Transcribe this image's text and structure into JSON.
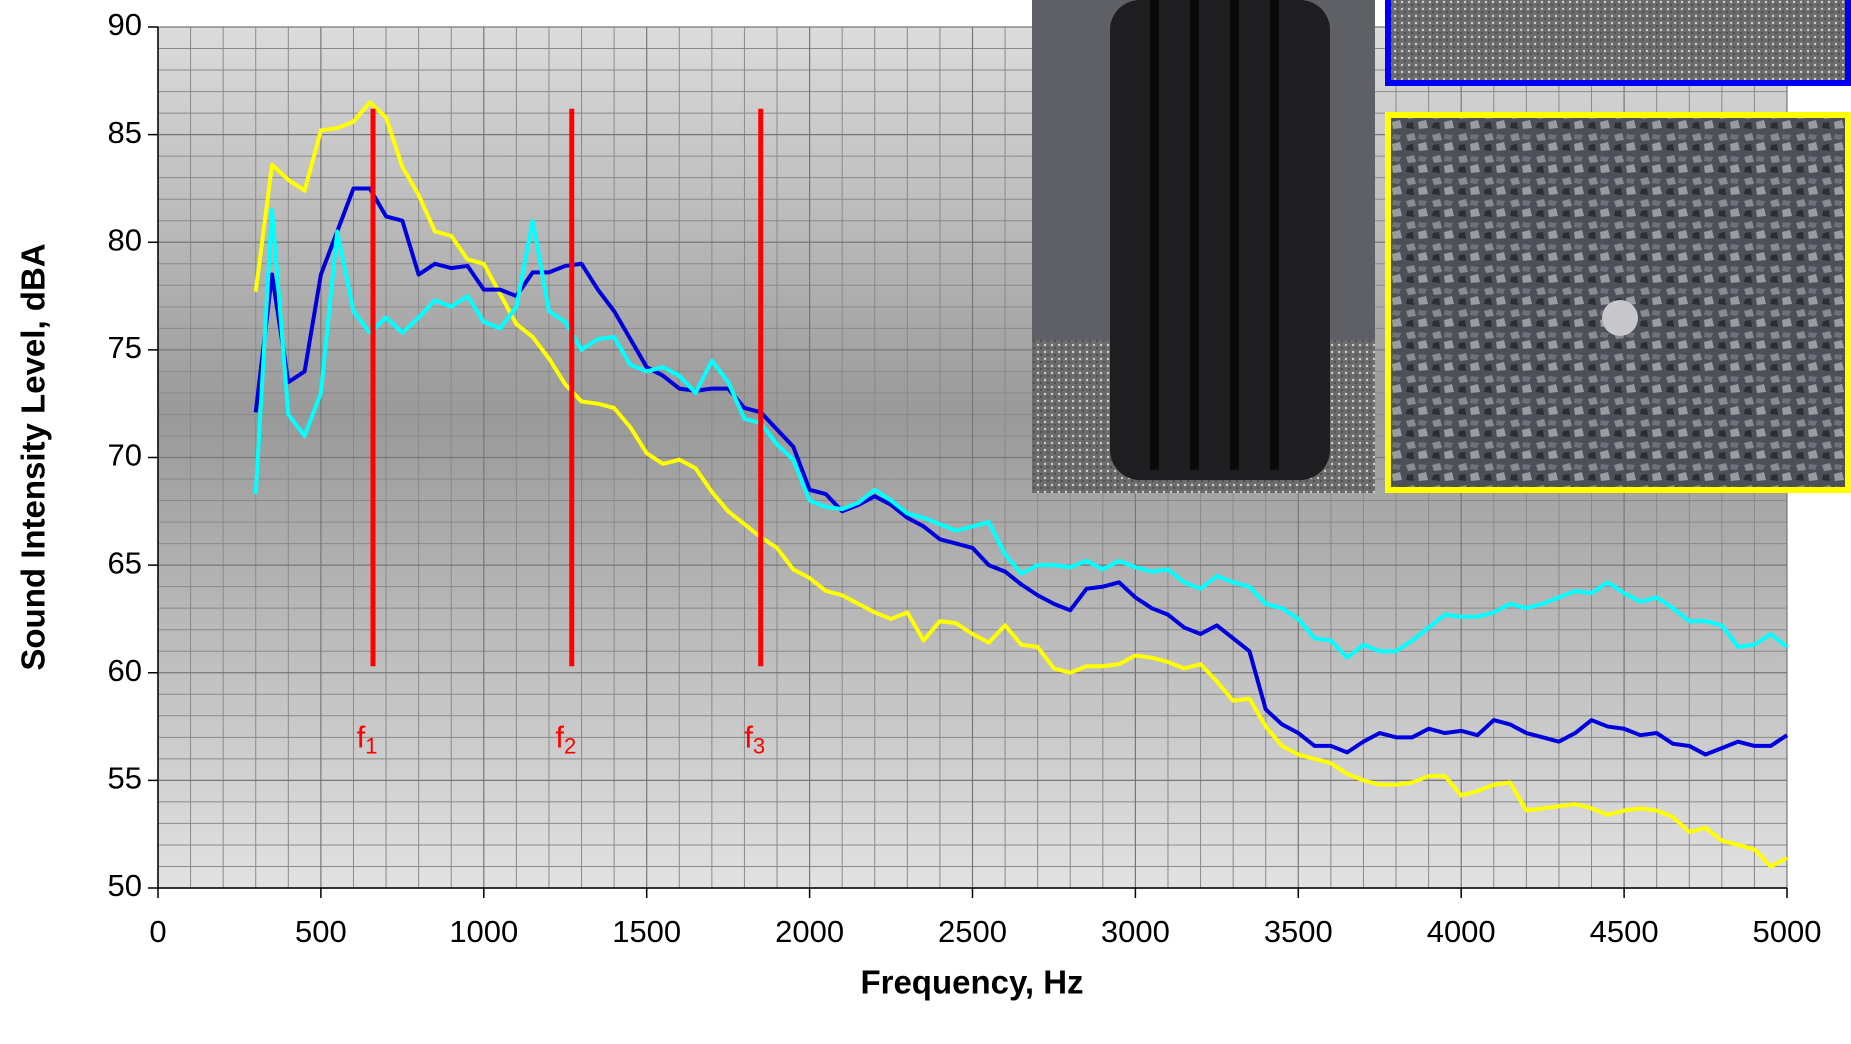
{
  "chart_data": {
    "type": "line",
    "xlabel": "Frequency, Hz",
    "ylabel": "Sound Intensity Level, dBA",
    "xlim": [
      0,
      5000
    ],
    "ylim": [
      50,
      90
    ],
    "xticks": [
      0,
      500,
      1000,
      1500,
      2000,
      2500,
      3000,
      3500,
      4000,
      4500,
      5000
    ],
    "yticks": [
      50,
      55,
      60,
      65,
      70,
      75,
      80,
      85,
      90
    ],
    "xminorticks": [
      100,
      200,
      300,
      400,
      600,
      700,
      800,
      900,
      1100,
      1200,
      1300,
      1400,
      1600,
      1700,
      1800,
      1900,
      2100,
      2200,
      2300,
      2400,
      2600,
      2700,
      2800,
      2900,
      3100,
      3200,
      3300,
      3400,
      3600,
      3700,
      3800,
      3900,
      4100,
      4200,
      4300,
      4400,
      4600,
      4700,
      4800,
      4900
    ],
    "yminorticks": [
      51,
      52,
      53,
      54,
      56,
      57,
      58,
      59,
      61,
      62,
      63,
      64,
      66,
      67,
      68,
      69,
      71,
      72,
      73,
      74,
      76,
      77,
      78,
      79,
      81,
      82,
      83,
      84,
      86,
      87,
      88,
      89
    ],
    "grid": true,
    "x": [
      300,
      350,
      400,
      450,
      500,
      550,
      600,
      650,
      700,
      750,
      800,
      850,
      900,
      950,
      1000,
      1050,
      1100,
      1150,
      1200,
      1250,
      1300,
      1350,
      1400,
      1450,
      1500,
      1550,
      1600,
      1650,
      1700,
      1750,
      1800,
      1850,
      1900,
      1950,
      2000,
      2050,
      2100,
      2150,
      2200,
      2250,
      2300,
      2350,
      2400,
      2450,
      2500,
      2550,
      2600,
      2650,
      2700,
      2750,
      2800,
      2850,
      2900,
      2950,
      3000,
      3050,
      3100,
      3150,
      3200,
      3250,
      3300,
      3350,
      3400,
      3450,
      3500,
      3550,
      3600,
      3650,
      3700,
      3750,
      3800,
      3850,
      3900,
      3950,
      4000,
      4050,
      4100,
      4150,
      4200,
      4250,
      4300,
      4350,
      4400,
      4450,
      4500,
      4550,
      4600,
      4650,
      4700,
      4750,
      4800,
      4850,
      4900,
      4950,
      5000
    ],
    "series": [
      {
        "color": "#ffff00",
        "values": [
          77.7,
          83.6,
          82.9,
          82.4,
          85.2,
          85.3,
          85.6,
          86.5,
          85.8,
          83.5,
          82.2,
          80.5,
          80.3,
          79.2,
          79.0,
          77.6,
          76.2,
          75.6,
          74.6,
          73.4,
          72.6,
          72.5,
          72.3,
          71.4,
          70.2,
          69.7,
          69.9,
          69.5,
          68.4,
          67.5,
          66.9,
          66.3,
          65.8,
          64.8,
          64.4,
          63.8,
          63.6,
          63.2,
          62.8,
          62.5,
          62.8,
          61.5,
          62.4,
          62.3,
          61.8,
          61.4,
          62.2,
          61.3,
          61.2,
          60.2,
          60.0,
          60.3,
          60.3,
          60.4,
          60.8,
          60.7,
          60.5,
          60.2,
          60.4,
          59.6,
          58.7,
          58.8,
          57.5,
          56.6,
          56.2,
          56.0,
          55.8,
          55.3,
          55.0,
          54.8,
          54.8,
          54.9,
          55.2,
          55.2,
          54.3,
          54.5,
          54.8,
          54.9,
          53.6,
          53.7,
          53.8,
          53.9,
          53.7,
          53.4,
          53.6,
          53.7,
          53.6,
          53.3,
          52.6,
          52.8,
          52.2,
          52.0,
          51.8,
          51.0,
          51.4
        ]
      },
      {
        "color": "#0000dd",
        "values": [
          72.1,
          78.5,
          73.5,
          74.0,
          78.5,
          80.5,
          82.5,
          82.5,
          81.2,
          81.0,
          78.5,
          79.0,
          78.8,
          78.9,
          77.8,
          77.8,
          77.5,
          78.6,
          78.6,
          78.9,
          79.0,
          77.8,
          76.8,
          75.5,
          74.2,
          73.8,
          73.2,
          73.1,
          73.2,
          73.2,
          72.3,
          72.1,
          71.3,
          70.5,
          68.5,
          68.3,
          67.5,
          67.8,
          68.2,
          67.8,
          67.2,
          66.8,
          66.2,
          66.0,
          65.8,
          65.0,
          64.7,
          64.1,
          63.6,
          63.2,
          62.9,
          63.9,
          64.0,
          64.2,
          63.5,
          63.0,
          62.7,
          62.1,
          61.8,
          62.2,
          61.6,
          61.0,
          58.3,
          57.6,
          57.2,
          56.6,
          56.6,
          56.3,
          56.8,
          57.2,
          57.0,
          57.0,
          57.4,
          57.2,
          57.3,
          57.1,
          57.8,
          57.6,
          57.2,
          57.0,
          56.8,
          57.2,
          57.8,
          57.5,
          57.4,
          57.1,
          57.2,
          56.7,
          56.6,
          56.2,
          56.5,
          56.8,
          56.6,
          56.6,
          57.1
        ]
      },
      {
        "color": "#00ffff",
        "values": [
          68.3,
          81.5,
          72.0,
          71.0,
          73.0,
          80.5,
          76.8,
          75.8,
          76.5,
          75.8,
          76.5,
          77.3,
          77.0,
          77.5,
          76.3,
          76.0,
          77.0,
          81.0,
          76.8,
          76.3,
          75.0,
          75.5,
          75.6,
          74.3,
          74.0,
          74.2,
          73.8,
          73.0,
          74.5,
          73.5,
          71.8,
          71.6,
          70.6,
          69.9,
          68.0,
          67.7,
          67.6,
          67.9,
          68.5,
          68.0,
          67.4,
          67.2,
          66.9,
          66.6,
          66.8,
          67.0,
          65.5,
          64.6,
          65.0,
          65.0,
          64.9,
          65.2,
          64.8,
          65.2,
          64.9,
          64.7,
          64.8,
          64.2,
          63.9,
          64.5,
          64.2,
          64.0,
          63.2,
          63.0,
          62.5,
          61.6,
          61.5,
          60.7,
          61.3,
          61.0,
          61.0,
          61.5,
          62.1,
          62.7,
          62.6,
          62.6,
          62.8,
          63.2,
          63.0,
          63.2,
          63.5,
          63.8,
          63.7,
          64.2,
          63.7,
          63.3,
          63.5,
          63.0,
          62.4,
          62.4,
          62.2,
          61.2,
          61.3,
          61.8,
          61.2
        ]
      }
    ],
    "markers": [
      {
        "x": 660,
        "ymin": 60.3,
        "ymax": 86.2,
        "color": "#ff0000",
        "text": "f",
        "subscript": "1"
      },
      {
        "x": 1270,
        "ymin": 60.3,
        "ymax": 86.2,
        "color": "#ff0000",
        "text": "f",
        "subscript": "2"
      },
      {
        "x": 1850,
        "ymin": 60.3,
        "ymax": 86.2,
        "color": "#ff0000",
        "text": "f",
        "subscript": "3"
      }
    ]
  }
}
